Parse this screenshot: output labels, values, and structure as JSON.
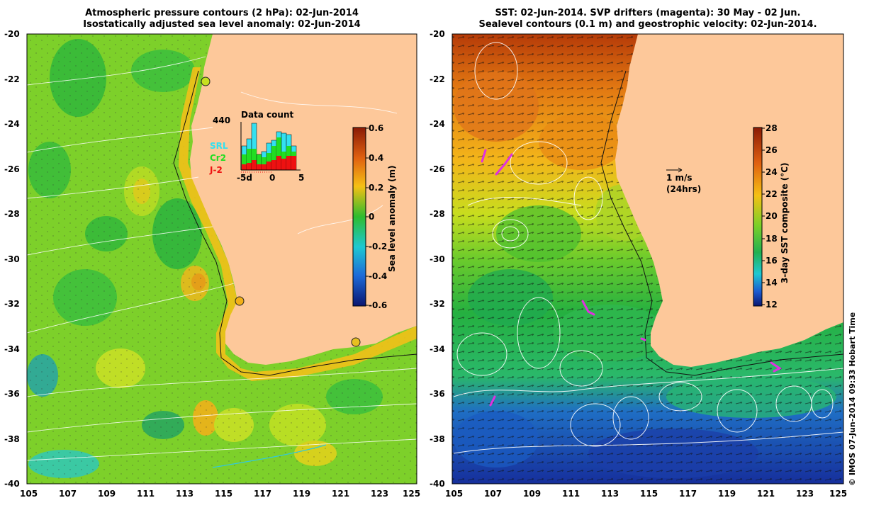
{
  "left_panel": {
    "title_line1": "Atmospheric pressure contours (2 hPa): 02-Jun-2014",
    "title_line2": "Isostatically adjusted sea level anomaly: 02-Jun-2014",
    "colorbar_label": "Sea level anomaly (m)",
    "colorbar_ticks": [
      "0.6",
      "0.4",
      "0.2",
      "0",
      "-0.2",
      "-0.4",
      "-0.6"
    ],
    "inset": {
      "title": "Data count",
      "max_label": "440",
      "x_ticks": [
        "-5d",
        "0",
        "5"
      ],
      "legend": [
        {
          "label": "SRL",
          "color": "#33e0f0"
        },
        {
          "label": "Cr2",
          "color": "#22dd22"
        },
        {
          "label": "J-2",
          "color": "#ee1111"
        }
      ]
    }
  },
  "right_panel": {
    "title_line1": "SST: 02-Jun-2014. SVP drifters (magenta): 30 May - 02 Jun.",
    "title_line2": "Sealevel contours (0.1 m) and geostrophic velocity: 02-Jun-2014.",
    "colorbar_label": "3-day SST composite (°C)",
    "colorbar_ticks": [
      "28",
      "26",
      "24",
      "22",
      "20",
      "18",
      "16",
      "14",
      "12"
    ],
    "velocity_scale_label": "1 m/s",
    "velocity_scale_sub": "(24hrs)"
  },
  "lat_ticks": [
    "-20",
    "-22",
    "-24",
    "-26",
    "-28",
    "-30",
    "-32",
    "-34",
    "-36",
    "-38",
    "-40"
  ],
  "lon_ticks": [
    "105",
    "107",
    "109",
    "111",
    "113",
    "115",
    "117",
    "119",
    "121",
    "123",
    "125"
  ],
  "credit": "© IMOS 07-Jun-2014 09:33 Hobart Time",
  "colors": {
    "land": "#fdc89a",
    "ocean_left": "#7dd02a",
    "ocean_right_warm": "#d96a10",
    "ocean_right_cold": "#1a3fb8",
    "drifters": "#e030e0"
  }
}
